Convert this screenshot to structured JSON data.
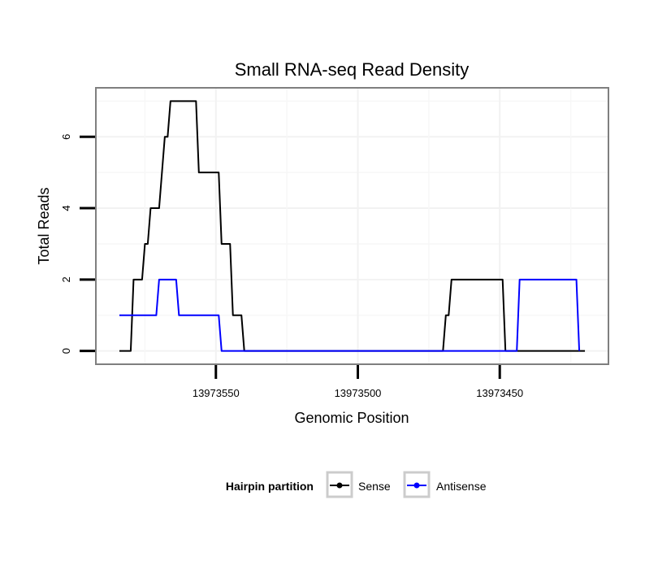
{
  "chart_data": {
    "type": "line",
    "title": "Small RNA-seq Read Density",
    "xlabel": "Genomic Position",
    "ylabel": "Total Reads",
    "xlim": [
      13973592,
      13973412
    ],
    "ylim": [
      -0.35,
      7.35
    ],
    "x_ticks": [
      13973550,
      13973500,
      13973450
    ],
    "x_tick_labels": [
      "13973550",
      "13973500",
      "13973450"
    ],
    "y_ticks": [
      0,
      2,
      4,
      6
    ],
    "y_tick_labels": [
      "0",
      "2",
      "4",
      "6"
    ],
    "grid": true,
    "legend": {
      "title": "Hairpin partition",
      "position": "bottom"
    },
    "series": [
      {
        "name": "Sense",
        "color": "#000000",
        "points": [
          [
            13973584,
            0
          ],
          [
            13973580,
            0
          ],
          [
            13973579,
            2
          ],
          [
            13973576,
            2
          ],
          [
            13973575,
            3
          ],
          [
            13973574,
            3
          ],
          [
            13973573,
            4
          ],
          [
            13973570,
            4
          ],
          [
            13973568,
            6
          ],
          [
            13973567,
            6
          ],
          [
            13973566,
            7
          ],
          [
            13973557,
            7
          ],
          [
            13973556,
            5
          ],
          [
            13973549,
            5
          ],
          [
            13973548,
            3
          ],
          [
            13973545,
            3
          ],
          [
            13973544,
            1
          ],
          [
            13973541,
            1
          ],
          [
            13973540,
            0
          ],
          [
            13973470,
            0
          ],
          [
            13973469,
            1
          ],
          [
            13973468,
            1
          ],
          [
            13973467,
            2
          ],
          [
            13973449,
            2
          ],
          [
            13973448,
            0
          ],
          [
            13973420,
            0
          ]
        ]
      },
      {
        "name": "Antisense",
        "color": "#0000ff",
        "points": [
          [
            13973584,
            1
          ],
          [
            13973571,
            1
          ],
          [
            13973570,
            2
          ],
          [
            13973564,
            2
          ],
          [
            13973563,
            1
          ],
          [
            13973549,
            1
          ],
          [
            13973548,
            0
          ],
          [
            13973444,
            0
          ],
          [
            13973443,
            2
          ],
          [
            13973423,
            2
          ],
          [
            13973422,
            0
          ]
        ]
      }
    ]
  }
}
